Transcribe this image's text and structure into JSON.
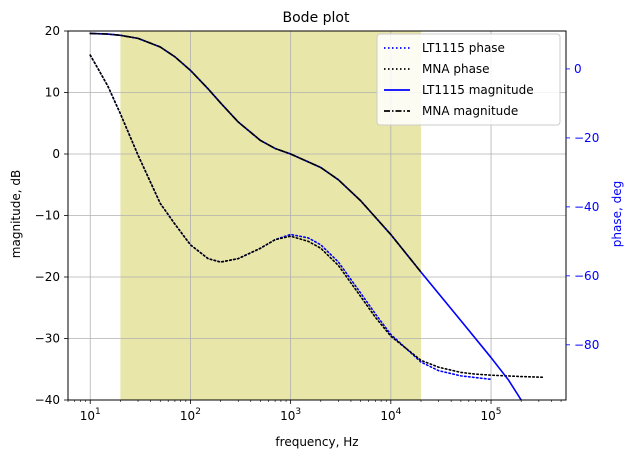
{
  "chart_data": {
    "type": "line",
    "title": "Bode plot",
    "xlabel": "frequency, Hz",
    "ylabel_left": "magnitude, dB",
    "ylabel_right": "phase, deg",
    "x_scale": "log",
    "xlim": [
      6,
      560000
    ],
    "ylim_left": [
      -40,
      20
    ],
    "ylim_right": [
      -96,
      11
    ],
    "grid": true,
    "legend_position": "top-right",
    "shaded_band": {
      "x_range": [
        20,
        20000
      ],
      "color": "#e8e6a8"
    },
    "x_ticks": [
      {
        "value": 10,
        "base": "10",
        "exp": "1"
      },
      {
        "value": 100,
        "base": "10",
        "exp": "2"
      },
      {
        "value": 1000,
        "base": "10",
        "exp": "3"
      },
      {
        "value": 10000,
        "base": "10",
        "exp": "4"
      },
      {
        "value": 100000,
        "base": "10",
        "exp": "5"
      }
    ],
    "y_ticks_left": [
      {
        "value": 20,
        "label": "20"
      },
      {
        "value": 10,
        "label": "10"
      },
      {
        "value": 0,
        "label": "0"
      },
      {
        "value": -10,
        "label": "−10"
      },
      {
        "value": -20,
        "label": "−20"
      },
      {
        "value": -30,
        "label": "−30"
      },
      {
        "value": -40,
        "label": "−40"
      }
    ],
    "y_ticks_right": [
      {
        "value": 0,
        "label": "0"
      },
      {
        "value": -20,
        "label": "−20"
      },
      {
        "value": -40,
        "label": "−40"
      },
      {
        "value": -60,
        "label": "−60"
      },
      {
        "value": -80,
        "label": "−80"
      }
    ],
    "series": [
      {
        "name": "LT1115 phase",
        "axis": "right",
        "color": "#0000ff",
        "style": "dotted",
        "x": [
          10,
          12,
          15,
          20,
          30,
          50,
          70,
          100,
          150,
          200,
          300,
          500,
          700,
          1000,
          1500,
          2000,
          3000,
          5000,
          7000,
          10000,
          20000,
          30000,
          50000,
          70000,
          100000
        ],
        "y": [
          4,
          0,
          -5,
          -13,
          -25,
          -39,
          -45,
          -51,
          -55,
          -56,
          -55,
          -52,
          -49.5,
          -48,
          -49,
          -51,
          -56,
          -65,
          -71,
          -77,
          -85,
          -87.5,
          -89,
          -89.5,
          -90
        ]
      },
      {
        "name": "MNA phase",
        "axis": "right",
        "color": "#000000",
        "style": "dotted",
        "x": [
          10,
          12,
          15,
          20,
          30,
          50,
          70,
          100,
          150,
          200,
          300,
          500,
          700,
          1000,
          1500,
          2000,
          3000,
          5000,
          7000,
          10000,
          20000,
          30000,
          50000,
          70000,
          100000,
          200000,
          330000
        ],
        "y": [
          4,
          0,
          -5,
          -13,
          -25,
          -39,
          -45,
          -51,
          -55,
          -56,
          -55,
          -52,
          -49.5,
          -48.5,
          -50,
          -52,
          -57,
          -66,
          -72,
          -77.5,
          -84.5,
          -86.5,
          -88,
          -88.5,
          -88.8,
          -89.2,
          -89.4
        ]
      },
      {
        "name": "LT1115 magnitude",
        "axis": "left",
        "color": "#0000ff",
        "style": "solid",
        "x": [
          10,
          15,
          20,
          30,
          50,
          70,
          100,
          150,
          200,
          300,
          500,
          700,
          1000,
          2000,
          3000,
          5000,
          10000,
          20000,
          50000,
          100000,
          150000,
          200000
        ],
        "y": [
          19.6,
          19.5,
          19.3,
          18.8,
          17.4,
          15.8,
          13.6,
          10.6,
          8.3,
          5.2,
          2.2,
          0.9,
          0,
          -2.2,
          -4.2,
          -7.6,
          -13.1,
          -19.2,
          -27.1,
          -33.1,
          -36.8,
          -40
        ]
      },
      {
        "name": "MNA magnitude",
        "axis": "left",
        "color": "#000000",
        "style": "dashdot",
        "x": [
          10,
          15,
          20,
          30,
          50,
          70,
          100,
          150,
          200,
          300,
          500,
          700,
          1000,
          2000,
          3000,
          5000,
          10000,
          20000
        ],
        "y": [
          19.6,
          19.5,
          19.3,
          18.8,
          17.4,
          15.8,
          13.6,
          10.6,
          8.3,
          5.2,
          2.2,
          0.9,
          0,
          -2.2,
          -4.2,
          -7.6,
          -13.1,
          -19.2
        ]
      }
    ]
  }
}
